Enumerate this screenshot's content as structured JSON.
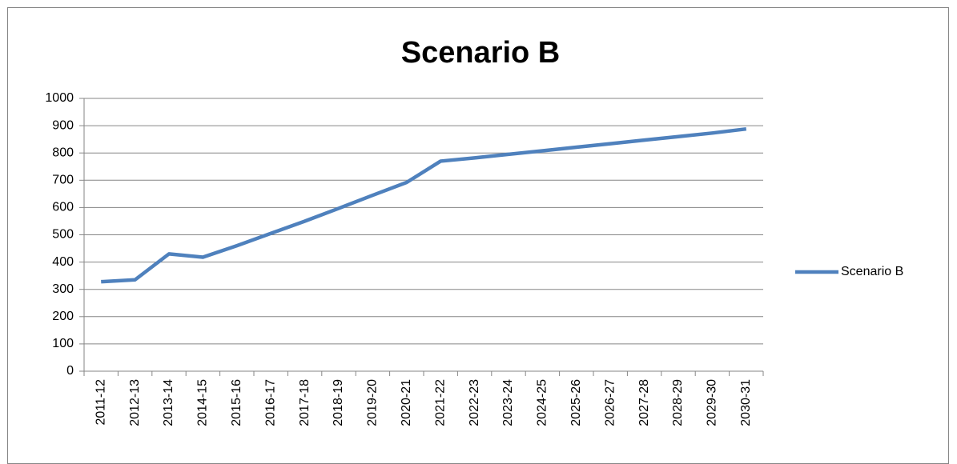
{
  "chart_data": {
    "type": "line",
    "title": "Scenario B",
    "categories": [
      "2011-12",
      "2012-13",
      "2013-14",
      "2014-15",
      "2015-16",
      "2016-17",
      "2017-18",
      "2018-19",
      "2019-20",
      "2020-21",
      "2021-22",
      "2022-23",
      "2023-24",
      "2024-25",
      "2025-26",
      "2026-27",
      "2027-28",
      "2028-29",
      "2029-30",
      "2030-31"
    ],
    "series": [
      {
        "name": "Scenario B",
        "color": "#4f81bd",
        "values": [
          328,
          335,
          430,
          418,
          460,
          505,
          550,
          597,
          645,
          692,
          770,
          782,
          795,
          808,
          821,
          834,
          847,
          860,
          873,
          888
        ]
      }
    ],
    "ylim": [
      0,
      1000
    ],
    "yticks": [
      0,
      100,
      200,
      300,
      400,
      500,
      600,
      700,
      800,
      900,
      1000
    ],
    "grid": true,
    "legend": "right"
  }
}
